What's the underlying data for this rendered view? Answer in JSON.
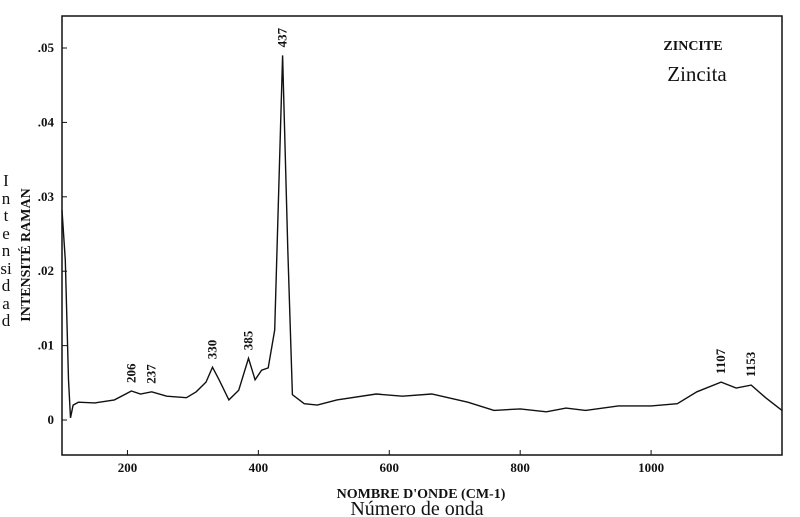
{
  "chart_data": {
    "type": "line",
    "title": "ZINCITE",
    "subtitle": "Zincita",
    "x_label": "NOMBRE D'ONDE (CM-1)",
    "x_label_translation": "Número de onda",
    "y_label": "INTENSITÉ RAMAN",
    "y_label_translation": "Intensidad",
    "x": [
      100,
      105,
      110,
      113,
      117,
      125,
      150,
      180,
      206,
      220,
      237,
      260,
      290,
      305,
      320,
      330,
      340,
      355,
      370,
      385,
      395,
      405,
      415,
      425,
      437,
      445,
      452,
      470,
      490,
      520,
      580,
      620,
      665,
      720,
      760,
      800,
      840,
      870,
      900,
      950,
      1000,
      1040,
      1070,
      1107,
      1130,
      1153,
      1175,
      1200
    ],
    "series": [
      {
        "color": "#111111",
        "values": [
          0.0282,
          0.0215,
          0.0054,
          0.0003,
          0.002,
          0.0024,
          0.0023,
          0.0027,
          0.0039,
          0.0035,
          0.0038,
          0.0032,
          0.003,
          0.0038,
          0.0051,
          0.0071,
          0.0054,
          0.0027,
          0.004,
          0.0083,
          0.0054,
          0.0067,
          0.007,
          0.0121,
          0.049,
          0.0229,
          0.0034,
          0.0022,
          0.002,
          0.0027,
          0.0035,
          0.0032,
          0.0035,
          0.0024,
          0.0013,
          0.0015,
          0.0011,
          0.0016,
          0.0013,
          0.0019,
          0.0019,
          0.0022,
          0.0038,
          0.0051,
          0.0043,
          0.0047,
          0.003,
          0.0013
        ]
      }
    ],
    "peak_labels": [
      206,
      237,
      330,
      385,
      437,
      1107,
      1153
    ],
    "xlim": [
      100,
      1200
    ],
    "ylim": [
      -0.0047,
      0.0543
    ],
    "xticks": [
      200,
      400,
      600,
      800,
      1000
    ],
    "yticks": [
      0,
      {
        "value": 0.01,
        "label": ".01"
      },
      {
        "value": 0.02,
        "label": ".02"
      },
      {
        "value": 0.03,
        "label": ".03"
      },
      {
        "value": 0.04,
        "label": ".04"
      },
      {
        "value": 0.05,
        "label": ".05"
      }
    ],
    "grid": false
  }
}
